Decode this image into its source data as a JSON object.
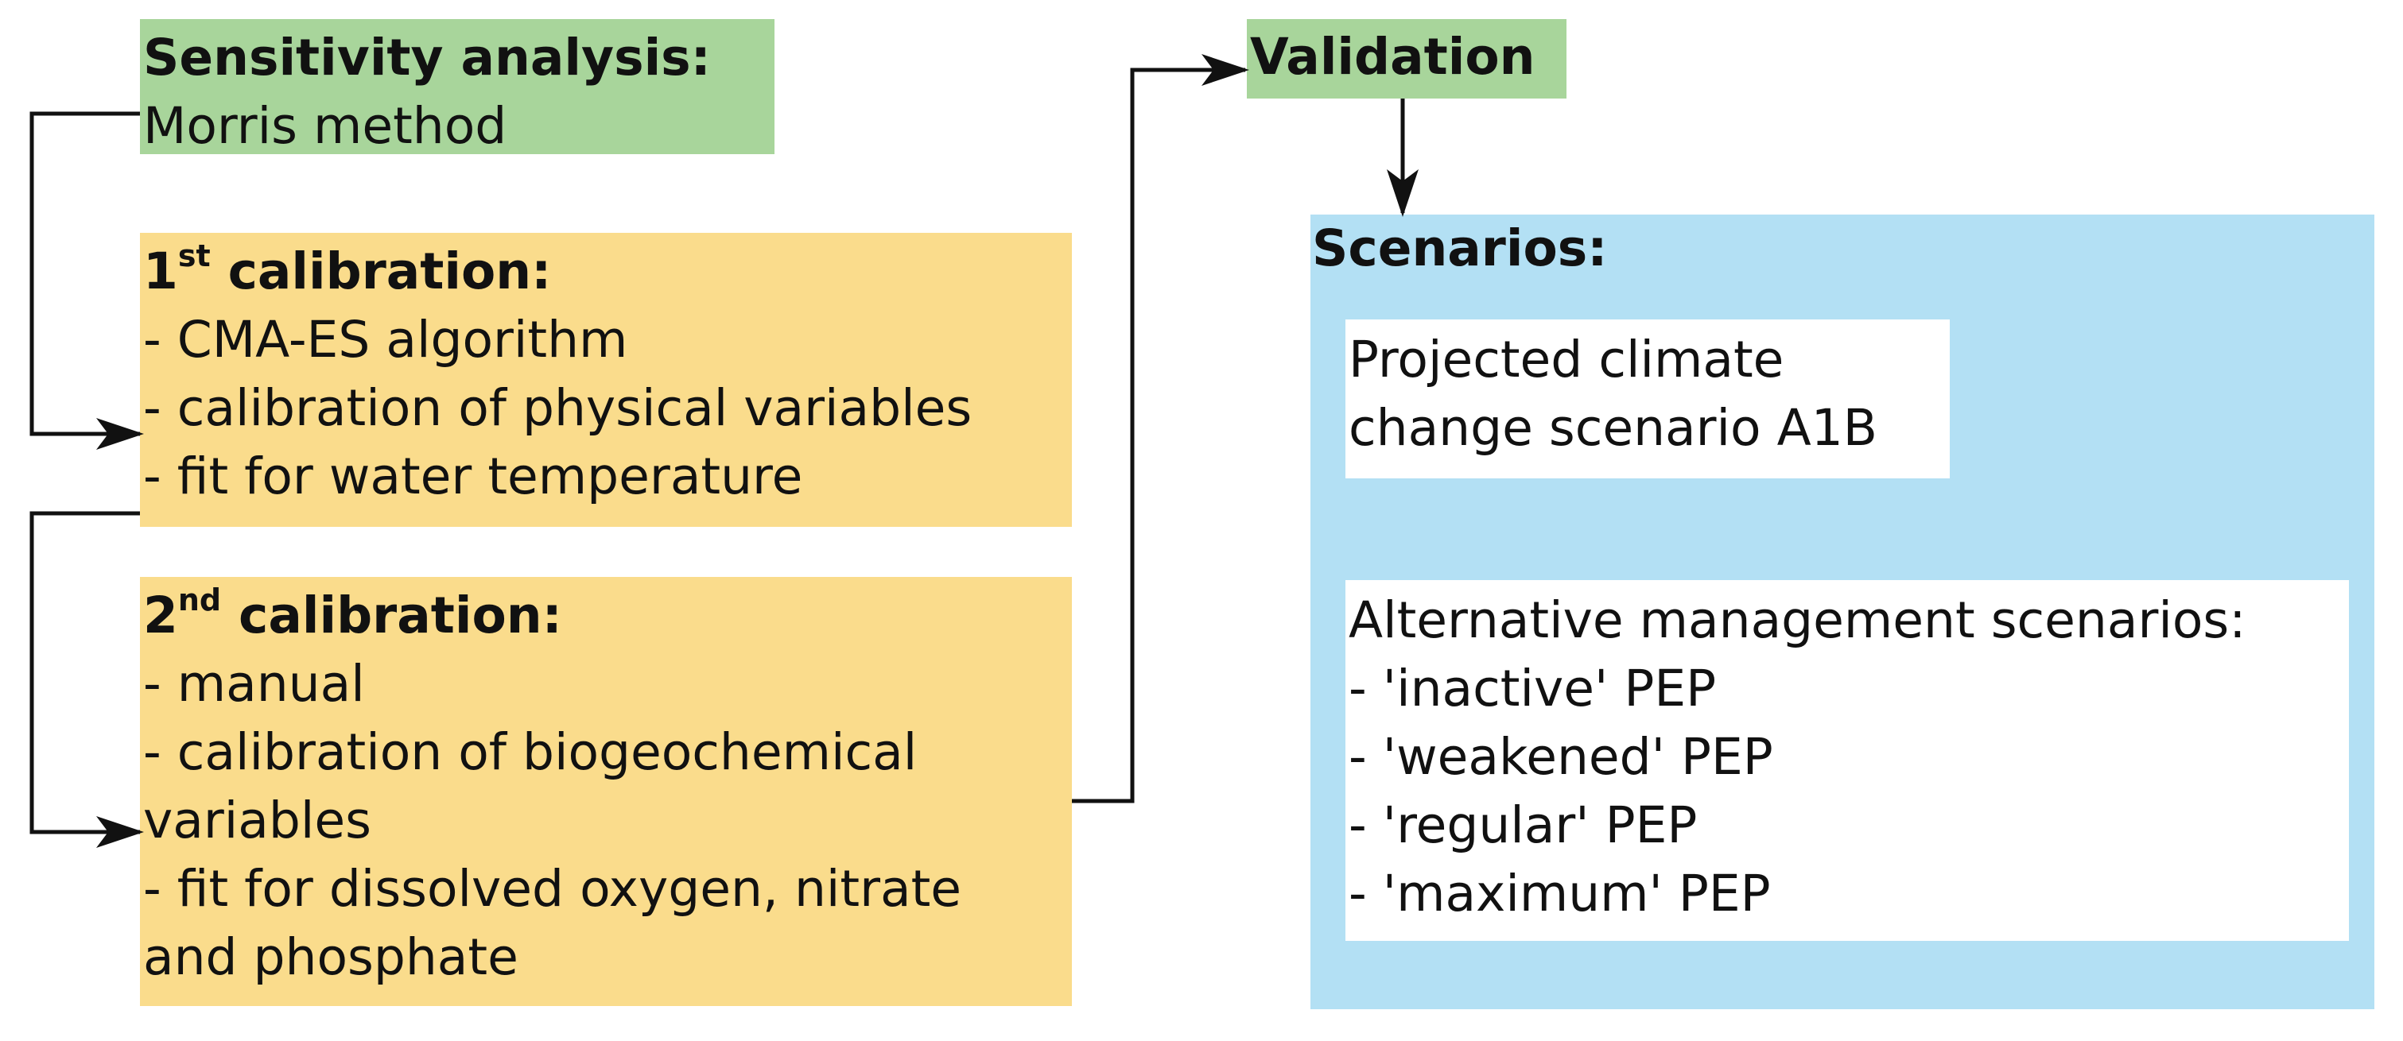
{
  "sensitivity": {
    "title": "Sensitivity analysis:",
    "method": "Morris method",
    "color": "#a8d59b"
  },
  "calibration1": {
    "title_num": "1",
    "title_sup": "st",
    "title_rest": " calibration:",
    "items": [
      "- CMA-ES algorithm",
      "- calibration of physical variables",
      "- fit for water temperature"
    ],
    "color": "#fadc8c"
  },
  "calibration2": {
    "title_num": "2",
    "title_sup": "nd",
    "title_rest": " calibration:",
    "lines": [
      "- manual",
      "- calibration of biogeochemical",
      "variables",
      "- fit for dissolved oxygen, nitrate",
      "and phosphate"
    ],
    "color": "#fadc8c"
  },
  "validation": {
    "title": "Validation",
    "color": "#a8d59b"
  },
  "scenarios": {
    "title": "Scenarios:",
    "color": "#b3e0f4",
    "climate": {
      "lines": [
        "Projected climate",
        "change scenario A1B"
      ]
    },
    "management": {
      "title": "Alternative management scenarios:",
      "items": [
        "- 'inactive' PEP",
        "- 'weakened' PEP",
        "- 'regular' PEP",
        "- 'maximum' PEP"
      ]
    }
  }
}
